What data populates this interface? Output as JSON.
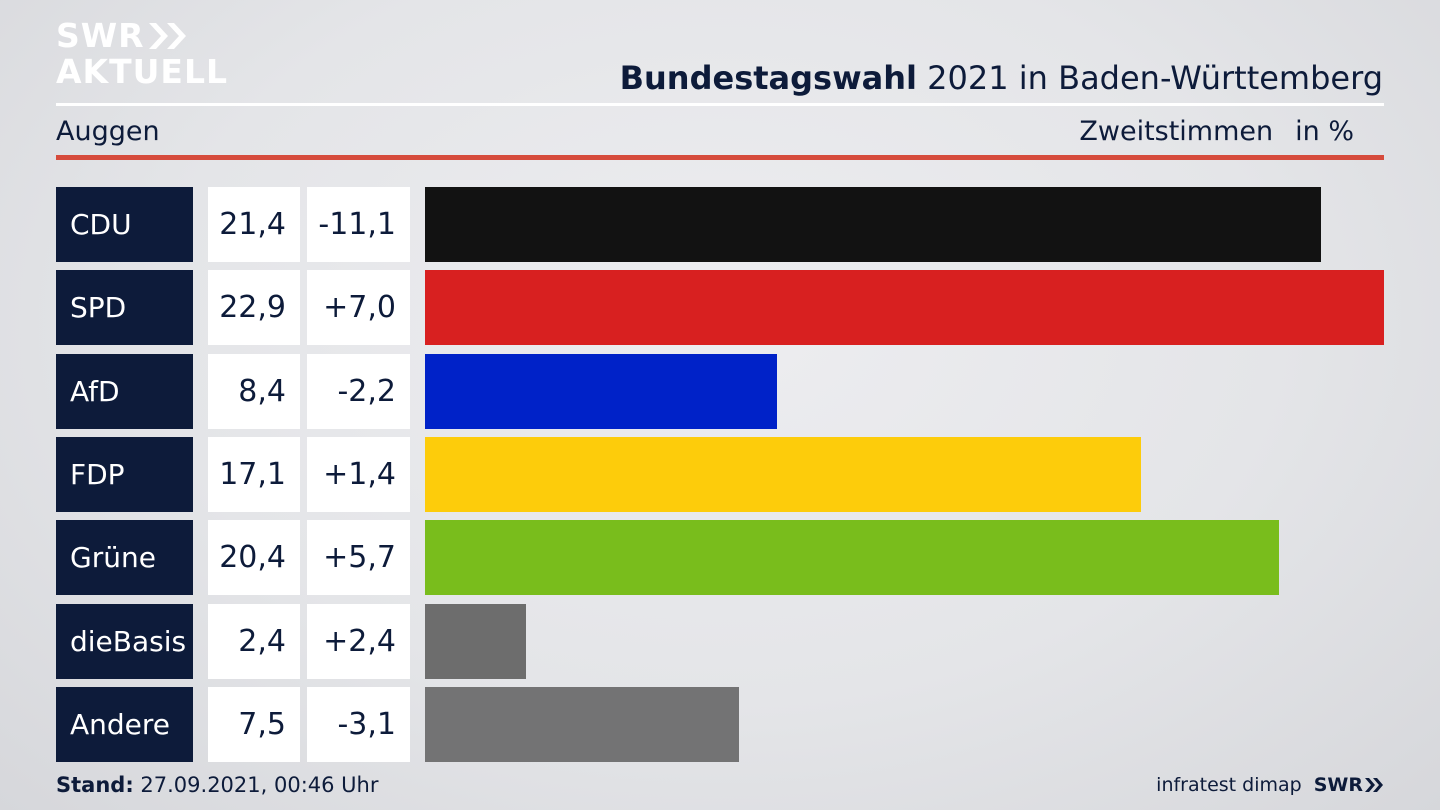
{
  "brand": {
    "line1": "SWR",
    "line2": "AKTUELL"
  },
  "header": {
    "title_bold": "Bundestagswahl",
    "title_rest": " 2021 in Baden-Württemberg",
    "location": "Auggen",
    "metric": "Zweitstimmen",
    "unit": "in %"
  },
  "chart_data": {
    "type": "bar",
    "orientation": "horizontal",
    "categories": [
      "CDU",
      "SPD",
      "AfD",
      "FDP",
      "Grüne",
      "dieBasis",
      "Andere"
    ],
    "series": [
      {
        "values": [
          21.4,
          22.9,
          8.4,
          17.1,
          20.4,
          2.4,
          7.5
        ],
        "value_labels": [
          "21,4",
          "22,9",
          "8,4",
          "17,1",
          "20,4",
          "2,4",
          "7,5"
        ],
        "change_labels": [
          "-11,1",
          "+7,0",
          "-2,2",
          "+1,4",
          "+5,7",
          "+2,4",
          "-3,1"
        ],
        "changes": [
          -11.1,
          7.0,
          -2.2,
          1.4,
          5.7,
          2.4,
          -3.1
        ],
        "colors": [
          "#121212",
          "#d82020",
          "#0022c8",
          "#fdcc0b",
          "#79bd1c",
          "#6d6d6d",
          "#737374"
        ]
      }
    ],
    "xlim": [
      0,
      22.9
    ],
    "grid": false,
    "legend": "none"
  },
  "footer": {
    "stand_label": "Stand:",
    "stand_value": " 27.09.2021, 00:46 Uhr",
    "source": "infratest dimap",
    "brand_small": "SWR"
  }
}
